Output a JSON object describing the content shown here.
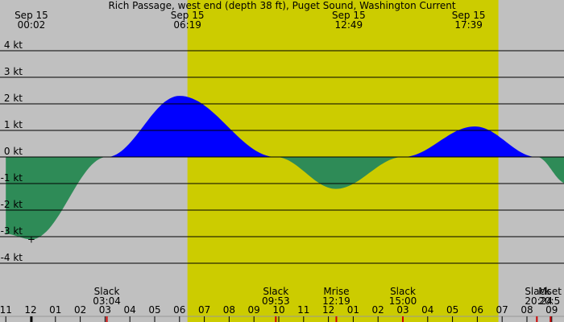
{
  "chart_data": {
    "type": "area",
    "title": "Rich Passage, west end (depth 38 ft), Puget Sound, Washington Current",
    "ylabel": "",
    "xlabel": "",
    "ylim": [
      -4,
      4
    ],
    "y_ticks": [
      "4 kt",
      "3 kt",
      "2 kt",
      "1 kt",
      "0 kt",
      "-1 kt",
      "-2 kt",
      "-3 kt",
      "-4 kt"
    ],
    "y_tick_values": [
      4,
      3,
      2,
      1,
      0,
      -1,
      -2,
      -3,
      -4
    ],
    "xlim_hours": [
      -1.0,
      21.6
    ],
    "daylight_hours": [
      6.32,
      18.85
    ],
    "x_hour_labels": [
      "11",
      "12",
      "01",
      "02",
      "03",
      "04",
      "05",
      "06",
      "07",
      "08",
      "09",
      "10",
      "11",
      "12",
      "01",
      "02",
      "03",
      "04",
      "05",
      "06",
      "07",
      "08",
      "09"
    ],
    "x_hour_values": [
      -1,
      0,
      1,
      2,
      3,
      4,
      5,
      6,
      7,
      8,
      9,
      10,
      11,
      12,
      13,
      14,
      15,
      16,
      17,
      18,
      19,
      20,
      21
    ],
    "top_events": [
      {
        "date": "Sep 15",
        "time": "00:02",
        "hour": 0.03
      },
      {
        "date": "Sep 15",
        "time": "06:19",
        "hour": 6.32
      },
      {
        "date": "Sep 15",
        "time": "12:49",
        "hour": 12.82
      },
      {
        "date": "Sep 15",
        "time": "17:39",
        "hour": 17.65
      }
    ],
    "bottom_events": [
      {
        "label": "Slack",
        "time": "03:04",
        "hour": 3.07
      },
      {
        "label": "Slack",
        "time": "09:53",
        "hour": 9.88
      },
      {
        "label": "Mrise",
        "time": "12:19",
        "hour": 12.32
      },
      {
        "label": "Slack",
        "time": "15:00",
        "hour": 15.0
      },
      {
        "label": "Slack",
        "time": "20:24",
        "hour": 20.4
      },
      {
        "label": "Mset",
        "time": "20:5",
        "hour": 20.95
      }
    ],
    "series": [
      {
        "name": "",
        "x_hours": [
          -1.0,
          0.03,
          3.07,
          6.0,
          9.88,
          12.3,
          15.0,
          17.9,
          20.4,
          21.6
        ],
        "values": [
          -2.9,
          -3.1,
          0.0,
          2.3,
          0.0,
          -1.2,
          0.0,
          1.15,
          0.0,
          -1.0
        ]
      }
    ],
    "marker_hour": 0.03,
    "colors": {
      "background": "#c0c0c0",
      "daylight": "#cccc00",
      "flood": "#0000ff",
      "ebb": "#2e8b57",
      "grid": "#000000",
      "tick_red": "#cc0000"
    }
  }
}
